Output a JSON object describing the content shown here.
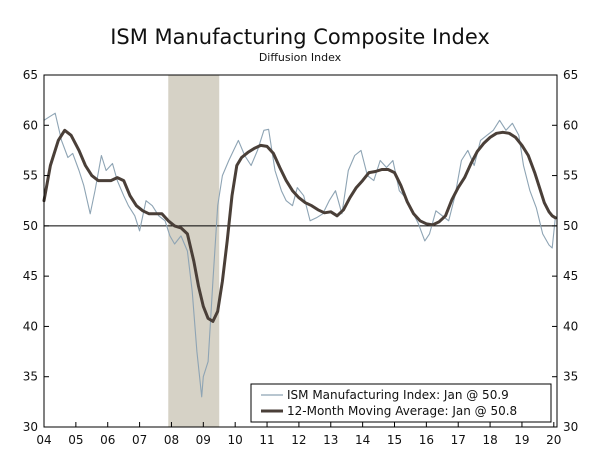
{
  "chart_data": {
    "type": "line",
    "title": "ISM Manufacturing Composite Index",
    "subtitle": "Diffusion Index",
    "xlabel": "",
    "ylabel": "",
    "xlim": [
      2004.0,
      2020.1
    ],
    "ylim": [
      30,
      65
    ],
    "x_tick_labels": [
      "04",
      "05",
      "06",
      "07",
      "08",
      "09",
      "10",
      "11",
      "12",
      "13",
      "14",
      "15",
      "16",
      "17",
      "18",
      "19",
      "20"
    ],
    "y_ticks": [
      30,
      35,
      40,
      45,
      50,
      55,
      60,
      65
    ],
    "reference_line": 50,
    "recession_band": {
      "start": 2007.9,
      "end": 2009.5
    },
    "legend_position": "bottom-right",
    "colors": {
      "index": "#8ea4b4",
      "moving_average": "#4a3f38",
      "recession": "#d6d2c6",
      "axis": "#000000"
    },
    "series": [
      {
        "name": "ISM Manufacturing Index: Jan @ 50.9",
        "x": [
          2004.0,
          2004.15,
          2004.35,
          2004.55,
          2004.75,
          2004.9,
          2005.1,
          2005.25,
          2005.45,
          2005.6,
          2005.8,
          2005.95,
          2006.15,
          2006.3,
          2006.5,
          2006.65,
          2006.85,
          2007.0,
          2007.2,
          2007.4,
          2007.6,
          2007.8,
          2007.95,
          2008.1,
          2008.3,
          2008.5,
          2008.65,
          2008.8,
          2008.95,
          2009.0,
          2009.15,
          2009.3,
          2009.45,
          2009.6,
          2009.8,
          2009.95,
          2010.1,
          2010.3,
          2010.5,
          2010.7,
          2010.9,
          2011.05,
          2011.25,
          2011.45,
          2011.6,
          2011.8,
          2011.95,
          2012.15,
          2012.35,
          2012.55,
          2012.75,
          2012.95,
          2013.15,
          2013.35,
          2013.55,
          2013.75,
          2013.95,
          2014.15,
          2014.35,
          2014.55,
          2014.75,
          2014.95,
          2015.15,
          2015.35,
          2015.55,
          2015.75,
          2015.95,
          2016.1,
          2016.3,
          2016.5,
          2016.7,
          2016.9,
          2017.1,
          2017.3,
          2017.5,
          2017.7,
          2017.9,
          2018.1,
          2018.3,
          2018.5,
          2018.7,
          2018.9,
          2019.05,
          2019.25,
          2019.45,
          2019.65,
          2019.85,
          2019.95,
          2020.05
        ],
        "y": [
          60.5,
          60.8,
          61.2,
          58.5,
          56.8,
          57.2,
          55.5,
          54.0,
          51.2,
          53.5,
          57.0,
          55.5,
          56.2,
          54.5,
          53.0,
          52.0,
          51.0,
          49.5,
          52.5,
          52.0,
          51.0,
          50.5,
          49.0,
          48.2,
          49.0,
          47.5,
          43.5,
          37.5,
          33.0,
          35.0,
          36.5,
          44.5,
          52.0,
          55.0,
          56.5,
          57.5,
          58.5,
          57.0,
          56.0,
          57.5,
          59.5,
          59.6,
          55.5,
          53.5,
          52.5,
          52.0,
          53.8,
          53.0,
          50.5,
          50.8,
          51.2,
          52.5,
          53.5,
          51.2,
          55.5,
          57.0,
          57.5,
          55.0,
          54.5,
          56.5,
          55.8,
          56.5,
          53.5,
          52.8,
          51.5,
          50.2,
          48.5,
          49.2,
          51.5,
          51.0,
          50.5,
          53.0,
          56.5,
          57.5,
          56.0,
          58.5,
          59.0,
          59.5,
          60.5,
          59.5,
          60.2,
          59.0,
          56.0,
          53.5,
          51.8,
          49.2,
          48.1,
          47.8,
          50.9
        ]
      },
      {
        "name": "12-Month Moving Average: Jan @ 50.8",
        "x": [
          2004.0,
          2004.2,
          2004.45,
          2004.65,
          2004.85,
          2005.1,
          2005.3,
          2005.5,
          2005.7,
          2005.9,
          2006.1,
          2006.3,
          2006.5,
          2006.7,
          2006.9,
          2007.1,
          2007.3,
          2007.5,
          2007.7,
          2007.9,
          2008.1,
          2008.3,
          2008.5,
          2008.7,
          2008.85,
          2009.0,
          2009.15,
          2009.3,
          2009.45,
          2009.6,
          2009.75,
          2009.9,
          2010.05,
          2010.2,
          2010.4,
          2010.6,
          2010.8,
          2011.0,
          2011.2,
          2011.4,
          2011.6,
          2011.8,
          2012.0,
          2012.2,
          2012.4,
          2012.6,
          2012.8,
          2013.0,
          2013.2,
          2013.4,
          2013.6,
          2013.8,
          2014.0,
          2014.2,
          2014.4,
          2014.6,
          2014.8,
          2015.0,
          2015.2,
          2015.4,
          2015.6,
          2015.8,
          2016.0,
          2016.2,
          2016.4,
          2016.6,
          2016.8,
          2017.0,
          2017.2,
          2017.4,
          2017.6,
          2017.8,
          2018.0,
          2018.2,
          2018.4,
          2018.6,
          2018.8,
          2019.0,
          2019.2,
          2019.4,
          2019.55,
          2019.7,
          2019.85,
          2019.95,
          2020.05
        ],
        "y": [
          52.5,
          56.0,
          58.5,
          59.5,
          59.0,
          57.5,
          56.0,
          55.0,
          54.5,
          54.5,
          54.5,
          54.8,
          54.5,
          53.0,
          52.0,
          51.5,
          51.2,
          51.2,
          51.2,
          50.5,
          50.0,
          49.8,
          49.2,
          46.5,
          44.0,
          42.0,
          40.8,
          40.5,
          41.5,
          44.5,
          48.5,
          53.0,
          56.0,
          56.8,
          57.3,
          57.7,
          58.0,
          57.9,
          57.2,
          55.8,
          54.5,
          53.5,
          52.8,
          52.3,
          52.0,
          51.6,
          51.3,
          51.4,
          51.0,
          51.6,
          52.8,
          53.8,
          54.5,
          55.3,
          55.4,
          55.6,
          55.6,
          55.3,
          54.0,
          52.4,
          51.2,
          50.5,
          50.2,
          50.1,
          50.4,
          51.0,
          52.6,
          53.8,
          54.8,
          56.2,
          57.4,
          58.2,
          58.8,
          59.2,
          59.3,
          59.2,
          58.8,
          58.0,
          57.0,
          55.3,
          53.8,
          52.3,
          51.4,
          51.0,
          50.8
        ]
      }
    ]
  }
}
